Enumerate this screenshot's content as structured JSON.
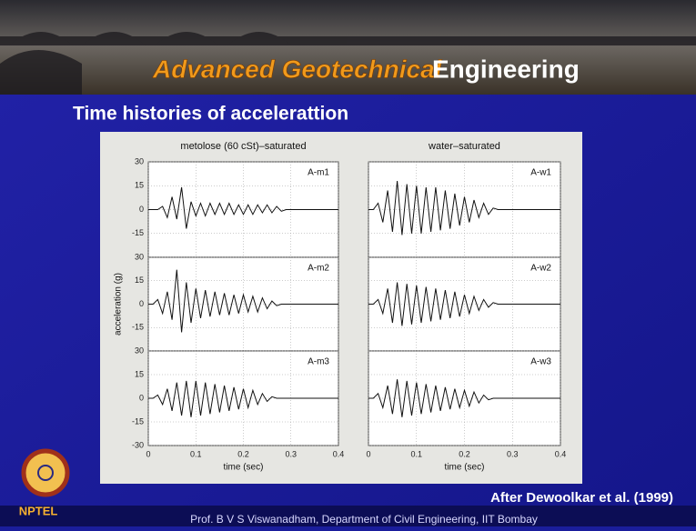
{
  "slide": {
    "title_main": "Advanced Geotechnical",
    "title_rest": "Engineering",
    "heading": "Time histories of accelerattion",
    "source": "After Dewoolkar et al. (1999)",
    "logo": "NPTEL",
    "footer": "Prof. B V S Viswanadham, Department of Civil Engineering, IIT Bombay"
  },
  "chart_data": [
    {
      "type": "line",
      "title": "metolose (60 cSt)–saturated",
      "annotation": "A-m1",
      "x": [
        0,
        0.01,
        0.02,
        0.03,
        0.04,
        0.05,
        0.06,
        0.07,
        0.08,
        0.09,
        0.1,
        0.11,
        0.12,
        0.13,
        0.14,
        0.15,
        0.16,
        0.17,
        0.18,
        0.19,
        0.2,
        0.21,
        0.22,
        0.23,
        0.24,
        0.25,
        0.26,
        0.27,
        0.28,
        0.29,
        0.3,
        0.31,
        0.32,
        0.33,
        0.34,
        0.35,
        0.36,
        0.37,
        0.38,
        0.39,
        0.4
      ],
      "series": [
        {
          "color": "#111111",
          "values": [
            0,
            0,
            0,
            2,
            -5,
            8,
            -6,
            14,
            -12,
            5,
            -4,
            4,
            -4,
            4,
            -3,
            4,
            -3,
            4,
            -3,
            3,
            -3,
            3,
            -3,
            3,
            -2,
            3,
            -2,
            2,
            -1,
            0,
            0,
            0,
            0,
            0,
            0,
            0,
            0,
            0,
            0,
            0,
            0
          ]
        }
      ],
      "xlim": [
        0,
        0.4
      ],
      "ylim": [
        -30,
        30
      ],
      "xticks": [
        0,
        0.1,
        0.2,
        0.3,
        0.4
      ],
      "yticks": [
        -15,
        0,
        15,
        30
      ],
      "x_tick_labels": false,
      "y_tick_labels": true,
      "grid": true
    },
    {
      "type": "line",
      "ylabel": "acceleration (g)",
      "annotation": "A-m2",
      "x": [
        0,
        0.01,
        0.02,
        0.03,
        0.04,
        0.05,
        0.06,
        0.07,
        0.08,
        0.09,
        0.1,
        0.11,
        0.12,
        0.13,
        0.14,
        0.15,
        0.16,
        0.17,
        0.18,
        0.19,
        0.2,
        0.21,
        0.22,
        0.23,
        0.24,
        0.25,
        0.26,
        0.27,
        0.28,
        0.29,
        0.3,
        0.31,
        0.32,
        0.33,
        0.34,
        0.35,
        0.36,
        0.37,
        0.38,
        0.39,
        0.4
      ],
      "series": [
        {
          "color": "#111111",
          "values": [
            0,
            0,
            3,
            -6,
            8,
            -10,
            22,
            -18,
            14,
            -12,
            10,
            -9,
            9,
            -8,
            8,
            -7,
            7,
            -7,
            6,
            -6,
            6,
            -5,
            5,
            -5,
            4,
            -3,
            2,
            -1,
            0,
            0,
            0,
            0,
            0,
            0,
            0,
            0,
            0,
            0,
            0,
            0,
            0
          ]
        }
      ],
      "xlim": [
        0,
        0.4
      ],
      "ylim": [
        -30,
        30
      ],
      "xticks": [
        0,
        0.1,
        0.2,
        0.3,
        0.4
      ],
      "yticks": [
        -15,
        0,
        15,
        30
      ],
      "x_tick_labels": false,
      "y_tick_labels": true,
      "grid": true
    },
    {
      "type": "line",
      "xlabel": "time (sec)",
      "annotation": "A-m3",
      "x": [
        0,
        0.01,
        0.02,
        0.03,
        0.04,
        0.05,
        0.06,
        0.07,
        0.08,
        0.09,
        0.1,
        0.11,
        0.12,
        0.13,
        0.14,
        0.15,
        0.16,
        0.17,
        0.18,
        0.19,
        0.2,
        0.21,
        0.22,
        0.23,
        0.24,
        0.25,
        0.26,
        0.27,
        0.28,
        0.29,
        0.3,
        0.31,
        0.32,
        0.33,
        0.34,
        0.35,
        0.36,
        0.37,
        0.38,
        0.39,
        0.4
      ],
      "series": [
        {
          "color": "#111111",
          "values": [
            0,
            0,
            2,
            -4,
            6,
            -8,
            10,
            -11,
            11,
            -12,
            11,
            -11,
            10,
            -10,
            9,
            -9,
            8,
            -8,
            7,
            -7,
            6,
            -6,
            5,
            -4,
            3,
            -2,
            1,
            0,
            0,
            0,
            0,
            0,
            0,
            0,
            0,
            0,
            0,
            0,
            0,
            0,
            0
          ]
        }
      ],
      "xlim": [
        0,
        0.4
      ],
      "ylim": [
        -30,
        30
      ],
      "xticks": [
        0,
        0.1,
        0.2,
        0.3,
        0.4
      ],
      "yticks": [
        -30,
        -15,
        0,
        15,
        30
      ],
      "x_tick_labels": true,
      "y_tick_labels": true,
      "grid": true
    },
    {
      "type": "line",
      "title": "water–saturated",
      "annotation": "A-w1",
      "x": [
        0,
        0.01,
        0.02,
        0.03,
        0.04,
        0.05,
        0.06,
        0.07,
        0.08,
        0.09,
        0.1,
        0.11,
        0.12,
        0.13,
        0.14,
        0.15,
        0.16,
        0.17,
        0.18,
        0.19,
        0.2,
        0.21,
        0.22,
        0.23,
        0.24,
        0.25,
        0.26,
        0.27,
        0.28,
        0.29,
        0.3,
        0.31,
        0.32,
        0.33,
        0.34,
        0.35,
        0.36,
        0.37,
        0.38,
        0.39,
        0.4
      ],
      "series": [
        {
          "color": "#111111",
          "values": [
            0,
            0,
            4,
            -8,
            12,
            -14,
            18,
            -16,
            16,
            -15,
            15,
            -15,
            14,
            -14,
            14,
            -13,
            12,
            -12,
            10,
            -10,
            8,
            -8,
            6,
            -5,
            4,
            -3,
            1,
            0,
            0,
            0,
            0,
            0,
            0,
            0,
            0,
            0,
            0,
            0,
            0,
            0,
            0
          ]
        }
      ],
      "xlim": [
        0,
        0.4
      ],
      "ylim": [
        -30,
        30
      ],
      "xticks": [
        0,
        0.1,
        0.2,
        0.3,
        0.4
      ],
      "yticks": [
        -15,
        0,
        15,
        30
      ],
      "x_tick_labels": false,
      "y_tick_labels": false,
      "grid": true
    },
    {
      "type": "line",
      "annotation": "A-w2",
      "x": [
        0,
        0.01,
        0.02,
        0.03,
        0.04,
        0.05,
        0.06,
        0.07,
        0.08,
        0.09,
        0.1,
        0.11,
        0.12,
        0.13,
        0.14,
        0.15,
        0.16,
        0.17,
        0.18,
        0.19,
        0.2,
        0.21,
        0.22,
        0.23,
        0.24,
        0.25,
        0.26,
        0.27,
        0.28,
        0.29,
        0.3,
        0.31,
        0.32,
        0.33,
        0.34,
        0.35,
        0.36,
        0.37,
        0.38,
        0.39,
        0.4
      ],
      "series": [
        {
          "color": "#111111",
          "values": [
            0,
            0,
            3,
            -6,
            10,
            -12,
            14,
            -14,
            13,
            -13,
            12,
            -12,
            11,
            -11,
            10,
            -10,
            9,
            -9,
            8,
            -8,
            6,
            -6,
            5,
            -4,
            3,
            -2,
            1,
            0,
            0,
            0,
            0,
            0,
            0,
            0,
            0,
            0,
            0,
            0,
            0,
            0,
            0
          ]
        }
      ],
      "xlim": [
        0,
        0.4
      ],
      "ylim": [
        -30,
        30
      ],
      "xticks": [
        0,
        0.1,
        0.2,
        0.3,
        0.4
      ],
      "yticks": [
        -15,
        0,
        15,
        30
      ],
      "x_tick_labels": false,
      "y_tick_labels": false,
      "grid": true
    },
    {
      "type": "line",
      "xlabel": "time (sec)",
      "annotation": "A-w3",
      "x": [
        0,
        0.01,
        0.02,
        0.03,
        0.04,
        0.05,
        0.06,
        0.07,
        0.08,
        0.09,
        0.1,
        0.11,
        0.12,
        0.13,
        0.14,
        0.15,
        0.16,
        0.17,
        0.18,
        0.19,
        0.2,
        0.21,
        0.22,
        0.23,
        0.24,
        0.25,
        0.26,
        0.27,
        0.28,
        0.29,
        0.3,
        0.31,
        0.32,
        0.33,
        0.34,
        0.35,
        0.36,
        0.37,
        0.38,
        0.39,
        0.4
      ],
      "series": [
        {
          "color": "#111111",
          "values": [
            0,
            0,
            3,
            -6,
            8,
            -10,
            12,
            -12,
            11,
            -11,
            10,
            -10,
            9,
            -9,
            8,
            -8,
            7,
            -7,
            6,
            -6,
            5,
            -5,
            4,
            -3,
            2,
            -1,
            0,
            0,
            0,
            0,
            0,
            0,
            0,
            0,
            0,
            0,
            0,
            0,
            0,
            0,
            0
          ]
        }
      ],
      "xlim": [
        0,
        0.4
      ],
      "ylim": [
        -30,
        30
      ],
      "xticks": [
        0,
        0.1,
        0.2,
        0.3,
        0.4
      ],
      "yticks": [
        -30,
        -15,
        0,
        15,
        30
      ],
      "x_tick_labels": true,
      "y_tick_labels": false,
      "grid": true
    }
  ]
}
